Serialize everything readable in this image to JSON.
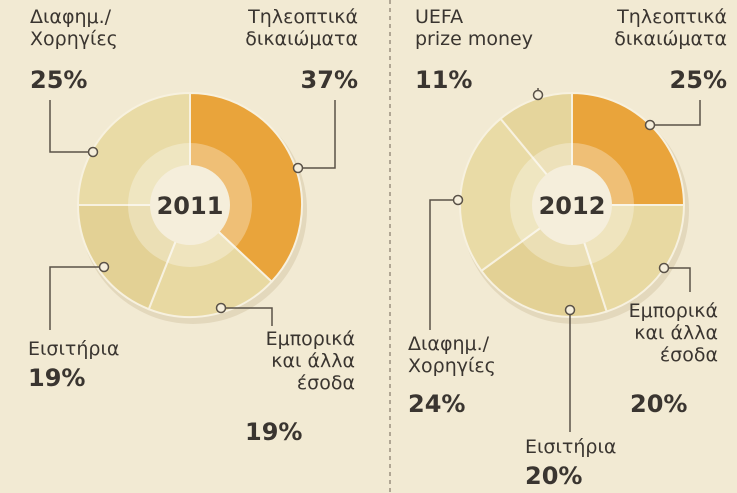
{
  "chart_data": [
    {
      "type": "donut",
      "title": "2011",
      "categories": [
        "Τηλεοπτικά\nδικαιώματα",
        "Εμπορικά\nκαι άλλα\nέσοδα",
        "Εισιτήρια",
        "Διαφημ./\nΧορηγίες"
      ],
      "values": [
        37,
        19,
        19,
        25
      ],
      "value_labels": [
        "37%",
        "19%",
        "19%",
        "25%"
      ],
      "colors": [
        "#e9a43b",
        "#e8d9a2",
        "#e3d195",
        "#e9dba6"
      ]
    },
    {
      "type": "donut",
      "title": "2012",
      "categories": [
        "Τηλεοπτικά\nδικαιώματα",
        "Εμπορικά\nκαι άλλα\nέσοδα",
        "Εισιτήρια",
        "Διαφημ./\nΧορηγίες",
        "UEFA\nprize money"
      ],
      "values": [
        25,
        20,
        20,
        24,
        11
      ],
      "value_labels": [
        "25%",
        "20%",
        "20%",
        "24%",
        "11%"
      ],
      "colors": [
        "#e9a43b",
        "#e8d9a2",
        "#e3d195",
        "#e9dba6",
        "#e5d59c"
      ]
    }
  ]
}
